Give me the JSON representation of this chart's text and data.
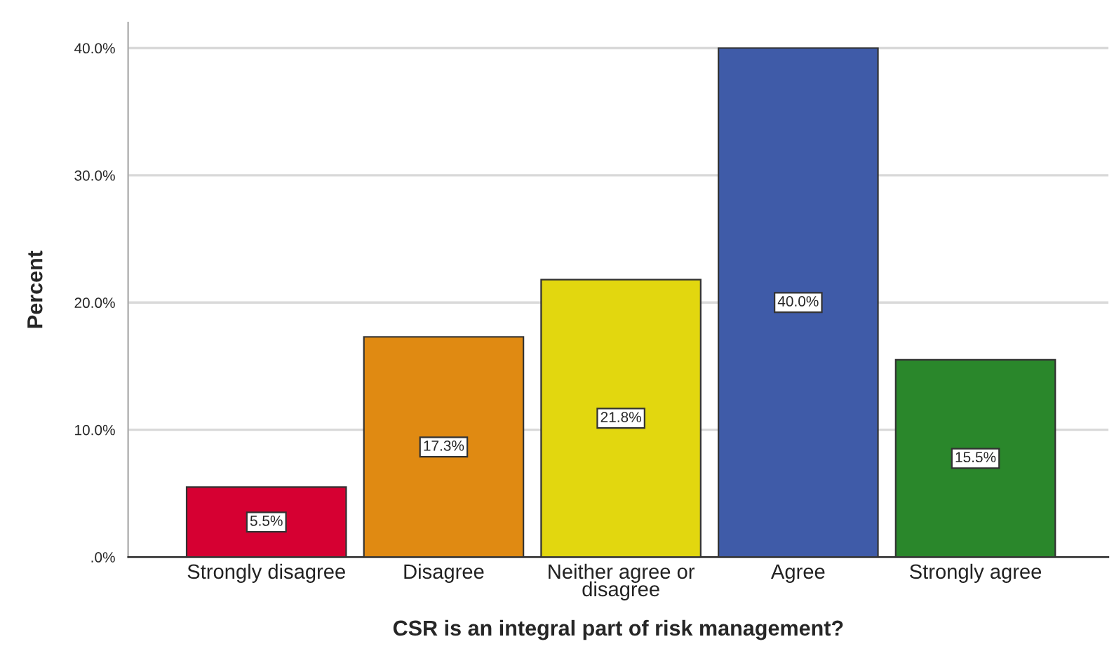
{
  "chart_data": {
    "type": "bar",
    "xlabel": "CSR is an integral part of risk management?",
    "ylabel": "Percent",
    "categories": [
      "Strongly disagree",
      "Disagree",
      "Neither agree or\ndisagree",
      "Agree",
      "Strongly agree"
    ],
    "values": [
      5.5,
      17.3,
      21.8,
      40.0,
      15.5
    ],
    "colors": [
      "#d60032",
      "#e08a12",
      "#e2d70f",
      "#3f5ba8",
      "#2a872b"
    ],
    "value_labels": [
      "5.5%",
      "17.3%",
      "21.8%",
      "40.0%",
      "15.5%"
    ],
    "ylim": [
      0,
      42
    ],
    "yticks": [
      {
        "value": 0,
        "label": ".0%"
      },
      {
        "value": 10,
        "label": "10.0%"
      },
      {
        "value": 20,
        "label": "20.0%"
      },
      {
        "value": 30,
        "label": "30.0%"
      },
      {
        "value": 40,
        "label": "40.0%"
      }
    ],
    "grid": "y"
  }
}
